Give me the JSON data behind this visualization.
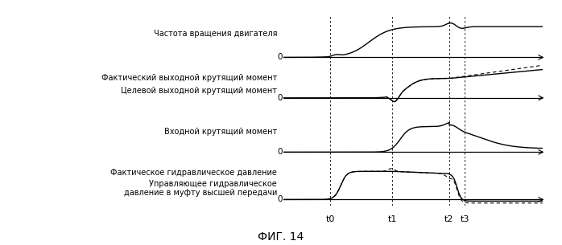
{
  "title": "ФИГ. 14",
  "background_color": "#ffffff",
  "line_color": "#000000",
  "t0": 0.18,
  "t1": 0.42,
  "t2": 0.64,
  "t3": 0.7,
  "panel_labels": [
    [
      "Частота вращения двигателя",
      "0"
    ],
    [
      "Фактический выходной крутящий момент",
      ""
    ],
    [
      "Целевой выходной крутящий момент",
      "0"
    ],
    [
      "Входной крутящий момент",
      "0"
    ],
    [
      "Фактическое гидравлическое давление",
      ""
    ],
    [
      "Управляющее гидравлическое",
      "0"
    ],
    [
      "давление в муфту высшей передачи",
      ""
    ]
  ],
  "time_labels": [
    "t0",
    "t1",
    "t2",
    "t3"
  ]
}
